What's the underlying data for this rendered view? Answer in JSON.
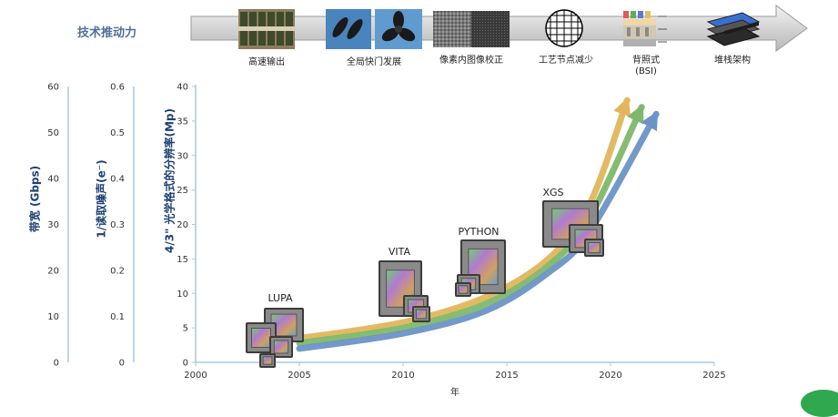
{
  "header": {
    "title": "技术推动力",
    "technologies": [
      {
        "label": "高速输出",
        "icon": "wafer-strip-icon"
      },
      {
        "label": "全局快门发展",
        "icon": "fan-blade-icon"
      },
      {
        "label": "像素内图像校正",
        "icon": "noise-pattern-icon"
      },
      {
        "label": "工艺节点减少",
        "icon": "grid-circle-icon"
      },
      {
        "label": "背照式\n(BSI)",
        "icon": "bsi-layer-icon"
      },
      {
        "label": "堆栈架构",
        "icon": "stacked-die-icon"
      }
    ]
  },
  "axes": {
    "bandwidth": {
      "label": "带宽 (Gbps)",
      "ticks": [
        "60",
        "50",
        "40",
        "30",
        "20",
        "10",
        "0"
      ]
    },
    "noise": {
      "label": "1/读取噪声(e⁻)",
      "ticks": [
        "0.6",
        "0.5",
        "0.4",
        "0.3",
        "0.2",
        "0.1",
        "0"
      ]
    },
    "resolution": {
      "label": "4/3\" 光学格式的分辨率(Mp)",
      "ticks": [
        "40",
        "35",
        "30",
        "25",
        "20",
        "15",
        "10",
        "5",
        "0"
      ]
    },
    "x": {
      "label": "年",
      "ticks": [
        "2000",
        "2005",
        "2010",
        "2015",
        "2020",
        "2025"
      ]
    }
  },
  "chart_data": {
    "type": "line",
    "xlabel": "年",
    "ylabel": "4/3\" 光学格式的分辨率(Mp)",
    "xlim": [
      2000,
      2025
    ],
    "ylim": [
      0,
      40
    ],
    "secondary_axes": [
      {
        "label": "带宽 (Gbps)",
        "ylim": [
          0,
          60
        ]
      },
      {
        "label": "1/读取噪声(e⁻)",
        "ylim": [
          0,
          0.6
        ]
      }
    ],
    "grid": false,
    "series": [
      {
        "color": "#e2b65c",
        "x": [
          2005,
          2010,
          2014,
          2017,
          2019,
          2020.8
        ],
        "y": [
          3.5,
          5.8,
          9.5,
          15,
          23,
          38
        ]
      },
      {
        "color": "#7fb86a",
        "x": [
          2005,
          2010,
          2014,
          2017,
          2019,
          2021.5
        ],
        "y": [
          2.8,
          5.0,
          8.5,
          14,
          21,
          37
        ]
      },
      {
        "color": "#6b94c6",
        "x": [
          2005,
          2010,
          2014,
          2017,
          2019,
          2022.2
        ],
        "y": [
          2.0,
          4.2,
          7.5,
          13,
          19,
          36
        ]
      }
    ],
    "products": [
      {
        "name": "LUPA",
        "x": 2004,
        "y": 4
      },
      {
        "name": "VITA",
        "x": 2010,
        "y": 10
      },
      {
        "name": "PYTHON",
        "x": 2013.6,
        "y": 13.5
      },
      {
        "name": "XGS",
        "x": 2018.5,
        "y": 20
      }
    ]
  },
  "colors": {
    "axis": "#a9c8e0",
    "title": "#1f3f73",
    "arrow": "#c8c8c8"
  }
}
